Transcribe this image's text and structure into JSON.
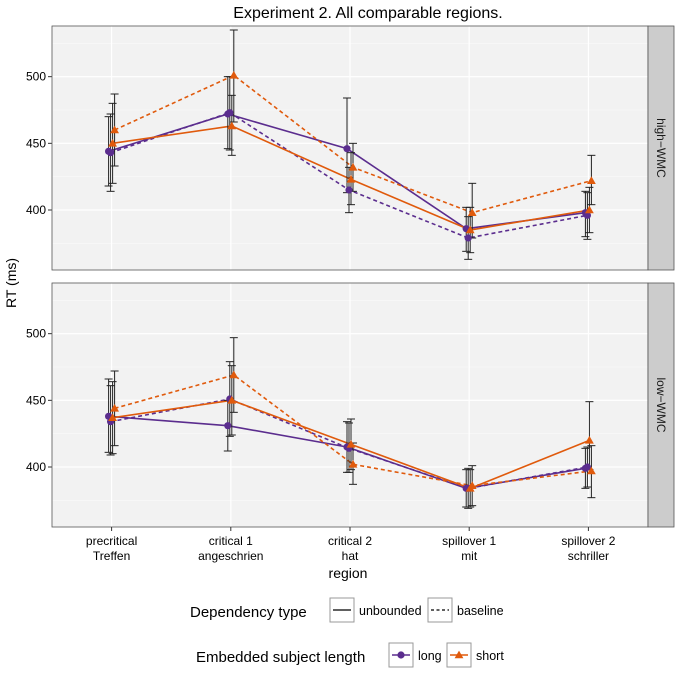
{
  "chart_data": {
    "type": "line",
    "title": "Experiment 2. All comparable regions.",
    "xlabel": "region",
    "ylabel": "RT (ms)",
    "categories": [
      [
        "precritical",
        "Treffen"
      ],
      [
        "critical 1",
        "angeschrien"
      ],
      [
        "critical 2",
        "hat"
      ],
      [
        "spillover 1",
        "mit"
      ],
      [
        "spillover 2",
        "schriller"
      ]
    ],
    "ylim": [
      355,
      538
    ],
    "yticks": [
      400,
      450,
      500
    ],
    "grid": true,
    "colors": {
      "long": "#5b2d8e",
      "short": "#e05a0c",
      "errorbar": "#222222",
      "strip": "#cccccc",
      "panel_bg": "#f2f2f2",
      "grid": "#ffffff"
    },
    "panels": [
      {
        "label": "high−WMC",
        "series": [
          {
            "name": "long unbounded",
            "length": "long",
            "dependency": "unbounded",
            "values": [
              444,
              472,
              446,
              386,
              398
            ],
            "ci_low": [
              418,
              446,
              413,
              369,
              380
            ],
            "ci_high": [
              470,
              500,
              484,
              402,
              414
            ]
          },
          {
            "name": "long baseline",
            "length": "long",
            "dependency": "baseline",
            "values": [
              443,
              473,
              415,
              379,
              396
            ],
            "ci_low": [
              414,
              445,
              398,
              363,
              378
            ],
            "ci_high": [
              472,
              500,
              432,
              395,
              413
            ]
          },
          {
            "name": "short unbounded",
            "length": "short",
            "dependency": "unbounded",
            "values": [
              450,
              463,
              423,
              385,
              400
            ],
            "ci_low": [
              420,
              441,
              404,
              368,
              383
            ],
            "ci_high": [
              480,
              486,
              443,
              402,
              417
            ]
          },
          {
            "name": "short baseline",
            "length": "short",
            "dependency": "baseline",
            "values": [
              460,
              501,
              432,
              398,
              422
            ],
            "ci_low": [
              433,
              466,
              414,
              379,
              404
            ],
            "ci_high": [
              487,
              535,
              450,
              420,
              441
            ]
          }
        ]
      },
      {
        "label": "low−WMC",
        "series": [
          {
            "name": "long unbounded",
            "length": "long",
            "dependency": "unbounded",
            "values": [
              438,
              431,
              415,
              384,
              399
            ],
            "ci_low": [
              411,
              412,
              396,
              370,
              384
            ],
            "ci_high": [
              466,
              450,
              434,
              398,
              414
            ]
          },
          {
            "name": "long baseline",
            "length": "long",
            "dependency": "baseline",
            "values": [
              434,
              451,
              414,
              384,
              400
            ],
            "ci_low": [
              409,
              423,
              396,
              369,
              385
            ],
            "ci_high": [
              461,
              479,
              433,
              399,
              415
            ]
          },
          {
            "name": "short unbounded",
            "length": "short",
            "dependency": "unbounded",
            "values": [
              437,
              450,
              417,
              384,
              420
            ],
            "ci_low": [
              410,
              424,
              398,
              370,
              398
            ],
            "ci_high": [
              464,
              476,
              436,
              398,
              449
            ]
          },
          {
            "name": "short baseline",
            "length": "short",
            "dependency": "baseline",
            "values": [
              444,
              469,
              402,
              386,
              397
            ],
            "ci_low": [
              416,
              441,
              387,
              371,
              377
            ],
            "ci_high": [
              472,
              497,
              418,
              401,
              416
            ]
          }
        ]
      }
    ],
    "legends": [
      {
        "title": "Dependency type",
        "items": [
          {
            "label": "unbounded",
            "kind": "solid"
          },
          {
            "label": "baseline",
            "kind": "dashed"
          }
        ]
      },
      {
        "title": "Embedded subject length",
        "items": [
          {
            "label": "long",
            "kind": "circle"
          },
          {
            "label": "short",
            "kind": "triangle"
          }
        ]
      }
    ]
  }
}
